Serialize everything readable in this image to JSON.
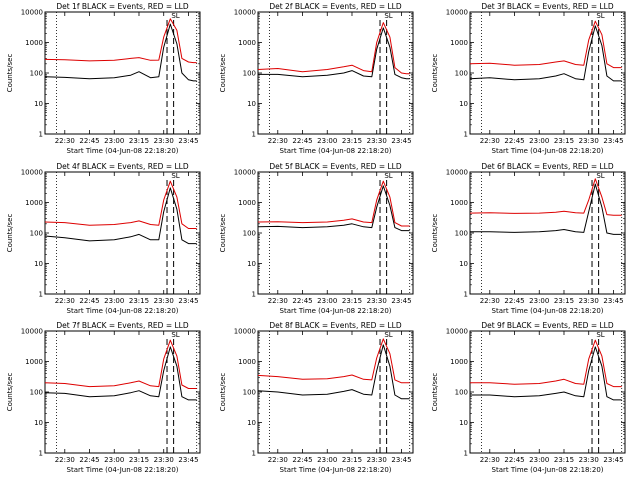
{
  "chart_data": [
    {
      "type": "line",
      "title": "Det 1f BLACK = Events, RED = LLD",
      "flag": "SL",
      "xlabel": "Start Time (04-Jun-08 22:18:20)",
      "ylabel": "Counts/sec",
      "yscale": "log",
      "ylim": [
        1,
        10000
      ],
      "x_ticks": [
        "22:30",
        "22:45",
        "23:00",
        "23:15",
        "23:30",
        "23:45"
      ],
      "series": [
        {
          "color": "#000000",
          "x": [
            "22:18",
            "22:30",
            "22:45",
            "23:00",
            "23:10",
            "23:15",
            "23:22",
            "23:27",
            "23:30",
            "23:34",
            "23:38",
            "23:41",
            "23:45",
            "23:48",
            "23:50"
          ],
          "y": [
            75,
            72,
            65,
            70,
            85,
            110,
            70,
            75,
            700,
            4000,
            900,
            100,
            60,
            55,
            55
          ]
        },
        {
          "color": "#dd0000",
          "x": [
            "22:18",
            "22:30",
            "22:45",
            "23:00",
            "23:10",
            "23:15",
            "23:22",
            "23:27",
            "23:30",
            "23:34",
            "23:38",
            "23:41",
            "23:45",
            "23:48",
            "23:50"
          ],
          "y": [
            280,
            270,
            250,
            260,
            300,
            320,
            260,
            265,
            1500,
            6000,
            2500,
            300,
            230,
            220,
            220
          ]
        }
      ]
    },
    {
      "type": "line",
      "title": "Det 2f BLACK = Events, RED = LLD",
      "flag": "SL",
      "xlabel": "Start Time (04-Jun-08 22:18:20)",
      "ylabel": "Counts/sec",
      "yscale": "log",
      "ylim": [
        1,
        10000
      ],
      "x_ticks": [
        "22:30",
        "22:45",
        "23:00",
        "23:15",
        "23:30",
        "23:45"
      ],
      "series": [
        {
          "color": "#000000",
          "x": [
            "22:18",
            "22:30",
            "22:45",
            "23:00",
            "23:10",
            "23:15",
            "23:22",
            "23:27",
            "23:30",
            "23:34",
            "23:38",
            "23:41",
            "23:45",
            "23:48",
            "23:50"
          ],
          "y": [
            90,
            90,
            75,
            85,
            100,
            120,
            80,
            75,
            600,
            3000,
            700,
            90,
            70,
            65,
            65
          ]
        },
        {
          "color": "#dd0000",
          "x": [
            "22:18",
            "22:30",
            "22:45",
            "23:00",
            "23:10",
            "23:15",
            "23:22",
            "23:27",
            "23:30",
            "23:34",
            "23:38",
            "23:41",
            "23:45",
            "23:48",
            "23:50"
          ],
          "y": [
            130,
            140,
            110,
            130,
            160,
            180,
            120,
            110,
            1000,
            4500,
            1500,
            150,
            100,
            95,
            95
          ]
        }
      ]
    },
    {
      "type": "line",
      "title": "Det 3f BLACK = Events, RED = LLD",
      "flag": "SL",
      "xlabel": "Start Time (04-Jun-08 22:18:20)",
      "ylabel": "Counts/sec",
      "yscale": "log",
      "ylim": [
        1,
        10000
      ],
      "x_ticks": [
        "22:30",
        "22:45",
        "23:00",
        "23:15",
        "23:30",
        "23:45"
      ],
      "series": [
        {
          "color": "#000000",
          "x": [
            "22:18",
            "22:30",
            "22:45",
            "23:00",
            "23:10",
            "23:15",
            "23:22",
            "23:27",
            "23:30",
            "23:34",
            "23:38",
            "23:41",
            "23:45",
            "23:48",
            "23:50"
          ],
          "y": [
            65,
            70,
            60,
            65,
            80,
            95,
            65,
            60,
            500,
            3500,
            800,
            80,
            55,
            55,
            55
          ]
        },
        {
          "color": "#dd0000",
          "x": [
            "22:18",
            "22:30",
            "22:45",
            "23:00",
            "23:10",
            "23:15",
            "23:22",
            "23:27",
            "23:30",
            "23:34",
            "23:38",
            "23:41",
            "23:45",
            "23:48",
            "23:50"
          ],
          "y": [
            200,
            210,
            180,
            190,
            230,
            250,
            190,
            180,
            1200,
            5000,
            1800,
            200,
            150,
            150,
            150
          ]
        }
      ]
    },
    {
      "type": "line",
      "title": "Det 4f BLACK = Events, RED = LLD",
      "flag": "SL",
      "xlabel": "Start Time (04-Jun-08 22:18:20)",
      "ylabel": "Counts/sec",
      "yscale": "log",
      "ylim": [
        1,
        10000
      ],
      "x_ticks": [
        "22:30",
        "22:45",
        "23:00",
        "23:15",
        "23:30",
        "23:45"
      ],
      "series": [
        {
          "color": "#000000",
          "x": [
            "22:18",
            "22:30",
            "22:45",
            "23:00",
            "23:10",
            "23:15",
            "23:22",
            "23:27",
            "23:30",
            "23:34",
            "23:38",
            "23:41",
            "23:45",
            "23:48",
            "23:50"
          ],
          "y": [
            80,
            70,
            55,
            60,
            75,
            90,
            60,
            60,
            500,
            3000,
            600,
            60,
            45,
            45,
            45
          ]
        },
        {
          "color": "#dd0000",
          "x": [
            "22:18",
            "22:30",
            "22:45",
            "23:00",
            "23:10",
            "23:15",
            "23:22",
            "23:27",
            "23:30",
            "23:34",
            "23:38",
            "23:41",
            "23:45",
            "23:48",
            "23:50"
          ],
          "y": [
            230,
            220,
            180,
            190,
            220,
            250,
            190,
            180,
            1200,
            5000,
            1500,
            200,
            140,
            140,
            140
          ]
        }
      ]
    },
    {
      "type": "line",
      "title": "Det 5f BLACK = Events, RED = LLD",
      "flag": "SL",
      "xlabel": "Start Time (04-Jun-08 22:18:20)",
      "ylabel": "Counts/sec",
      "yscale": "log",
      "ylim": [
        1,
        10000
      ],
      "x_ticks": [
        "22:30",
        "22:45",
        "23:00",
        "23:15",
        "23:30",
        "23:45"
      ],
      "series": [
        {
          "color": "#000000",
          "x": [
            "22:18",
            "22:30",
            "22:45",
            "23:00",
            "23:10",
            "23:15",
            "23:22",
            "23:27",
            "23:30",
            "23:34",
            "23:38",
            "23:41",
            "23:45",
            "23:48",
            "23:50"
          ],
          "y": [
            160,
            165,
            150,
            160,
            180,
            200,
            160,
            150,
            700,
            3500,
            800,
            150,
            120,
            120,
            120
          ]
        },
        {
          "color": "#dd0000",
          "x": [
            "22:18",
            "22:30",
            "22:45",
            "23:00",
            "23:10",
            "23:15",
            "23:22",
            "23:27",
            "23:30",
            "23:34",
            "23:38",
            "23:41",
            "23:45",
            "23:48",
            "23:50"
          ],
          "y": [
            230,
            235,
            220,
            230,
            260,
            290,
            230,
            220,
            1200,
            5000,
            1500,
            220,
            170,
            170,
            170
          ]
        }
      ]
    },
    {
      "type": "line",
      "title": "Det 6f BLACK = Events, RED = LLD",
      "flag": "SL",
      "xlabel": "Start Time (04-Jun-08 22:18:20)",
      "ylabel": "Counts/sec",
      "yscale": "log",
      "ylim": [
        1,
        10000
      ],
      "x_ticks": [
        "22:30",
        "22:45",
        "23:00",
        "23:15",
        "23:30",
        "23:45"
      ],
      "series": [
        {
          "color": "#000000",
          "x": [
            "22:18",
            "22:30",
            "22:45",
            "23:00",
            "23:10",
            "23:15",
            "23:22",
            "23:27",
            "23:30",
            "23:34",
            "23:38",
            "23:41",
            "23:45",
            "23:48",
            "23:50"
          ],
          "y": [
            110,
            110,
            105,
            110,
            120,
            130,
            110,
            105,
            500,
            4000,
            700,
            100,
            90,
            90,
            90
          ]
        },
        {
          "color": "#dd0000",
          "x": [
            "22:18",
            "22:30",
            "22:45",
            "23:00",
            "23:10",
            "23:15",
            "23:22",
            "23:27",
            "23:30",
            "23:34",
            "23:38",
            "23:41",
            "23:45",
            "23:48",
            "23:50"
          ],
          "y": [
            450,
            460,
            440,
            450,
            480,
            520,
            460,
            450,
            1200,
            6000,
            1500,
            400,
            380,
            380,
            380
          ]
        }
      ]
    },
    {
      "type": "line",
      "title": "Det 7f BLACK = Events, RED = LLD",
      "flag": "SL",
      "xlabel": "Start Time (04-Jun-08 22:18:20)",
      "ylabel": "Counts/sec",
      "yscale": "log",
      "ylim": [
        1,
        10000
      ],
      "x_ticks": [
        "22:30",
        "22:45",
        "23:00",
        "23:15",
        "23:30",
        "23:45"
      ],
      "series": [
        {
          "color": "#000000",
          "x": [
            "22:18",
            "22:30",
            "22:45",
            "23:00",
            "23:10",
            "23:15",
            "23:22",
            "23:27",
            "23:30",
            "23:34",
            "23:38",
            "23:41",
            "23:45",
            "23:48",
            "23:50"
          ],
          "y": [
            95,
            90,
            70,
            75,
            95,
            110,
            75,
            70,
            500,
            3000,
            700,
            70,
            55,
            55,
            55
          ]
        },
        {
          "color": "#dd0000",
          "x": [
            "22:18",
            "22:30",
            "22:45",
            "23:00",
            "23:10",
            "23:15",
            "23:22",
            "23:27",
            "23:30",
            "23:34",
            "23:38",
            "23:41",
            "23:45",
            "23:48",
            "23:50"
          ],
          "y": [
            200,
            190,
            150,
            160,
            200,
            230,
            160,
            150,
            1200,
            5000,
            1500,
            170,
            130,
            130,
            130
          ]
        }
      ]
    },
    {
      "type": "line",
      "title": "Det 8f BLACK = Events, RED = LLD",
      "flag": "SL",
      "xlabel": "Start Time (04-Jun-08 22:18:20)",
      "ylabel": "Counts/sec",
      "yscale": "log",
      "ylim": [
        1,
        10000
      ],
      "x_ticks": [
        "22:30",
        "22:45",
        "23:00",
        "23:15",
        "23:30",
        "23:45"
      ],
      "series": [
        {
          "color": "#000000",
          "x": [
            "22:18",
            "22:30",
            "22:45",
            "23:00",
            "23:10",
            "23:15",
            "23:22",
            "23:27",
            "23:30",
            "23:34",
            "23:38",
            "23:41",
            "23:45",
            "23:48",
            "23:50"
          ],
          "y": [
            110,
            100,
            80,
            85,
            105,
            120,
            85,
            80,
            500,
            3500,
            700,
            80,
            60,
            60,
            60
          ]
        },
        {
          "color": "#dd0000",
          "x": [
            "22:18",
            "22:30",
            "22:45",
            "23:00",
            "23:10",
            "23:15",
            "23:22",
            "23:27",
            "23:30",
            "23:34",
            "23:38",
            "23:41",
            "23:45",
            "23:48",
            "23:50"
          ],
          "y": [
            350,
            320,
            260,
            270,
            320,
            360,
            260,
            250,
            1300,
            5500,
            1800,
            250,
            200,
            200,
            200
          ]
        }
      ]
    },
    {
      "type": "line",
      "title": "Det 9f BLACK = Events, RED = LLD",
      "flag": "SL",
      "xlabel": "Start Time (04-Jun-08 22:18:20)",
      "ylabel": "Counts/sec",
      "yscale": "log",
      "ylim": [
        1,
        10000
      ],
      "x_ticks": [
        "22:30",
        "22:45",
        "23:00",
        "23:15",
        "23:30",
        "23:45"
      ],
      "series": [
        {
          "color": "#000000",
          "x": [
            "22:18",
            "22:30",
            "22:45",
            "23:00",
            "23:10",
            "23:15",
            "23:22",
            "23:27",
            "23:30",
            "23:34",
            "23:38",
            "23:41",
            "23:45",
            "23:48",
            "23:50"
          ],
          "y": [
            80,
            80,
            70,
            75,
            90,
            100,
            75,
            70,
            500,
            3000,
            700,
            70,
            55,
            55,
            55
          ]
        },
        {
          "color": "#dd0000",
          "x": [
            "22:18",
            "22:30",
            "22:45",
            "23:00",
            "23:10",
            "23:15",
            "23:22",
            "23:27",
            "23:30",
            "23:34",
            "23:38",
            "23:41",
            "23:45",
            "23:48",
            "23:50"
          ],
          "y": [
            200,
            200,
            180,
            190,
            230,
            260,
            190,
            180,
            1200,
            5000,
            1500,
            190,
            150,
            150,
            150
          ]
        }
      ]
    }
  ]
}
